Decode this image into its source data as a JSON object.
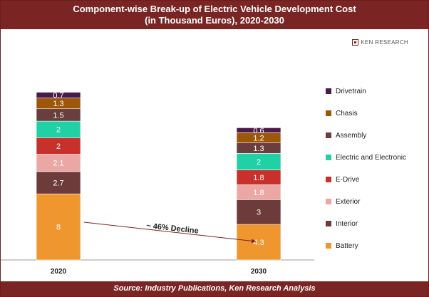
{
  "header": {
    "title_line1": "Component-wise Break-up of Electric Vehicle Development Cost",
    "title_line2": "(in Thousand Euros), 2020-2030"
  },
  "logo": {
    "text": "KEN RESEARCH"
  },
  "footer": {
    "source": "Source: Industry Publications, Ken Research Analysis"
  },
  "annotation": {
    "text": "~ 46% Decline"
  },
  "chart_data": {
    "type": "bar",
    "stacked": true,
    "title": "Component-wise Break-up of Electric Vehicle Development Cost (in Thousand Euros), 2020-2030",
    "categories": [
      "2020",
      "2030"
    ],
    "series": [
      {
        "name": "Battery",
        "values": [
          8,
          4.3
        ],
        "labels": [
          "8",
          "4.3"
        ],
        "color": "#f0962e"
      },
      {
        "name": "Interior",
        "values": [
          2.7,
          3
        ],
        "labels": [
          "2.7",
          "3"
        ],
        "color": "#6e3b3b"
      },
      {
        "name": "Exterior",
        "values": [
          2.1,
          1.8
        ],
        "labels": [
          "2.1",
          "1.8"
        ],
        "color": "#eba7a3"
      },
      {
        "name": "E-Drive",
        "values": [
          2,
          1.8
        ],
        "labels": [
          "2",
          "1.8"
        ],
        "color": "#c8302b"
      },
      {
        "name": "Electric and Electronic",
        "values": [
          2,
          2
        ],
        "labels": [
          "2",
          "2"
        ],
        "color": "#1fd1a5"
      },
      {
        "name": "Assembly",
        "values": [
          1.5,
          1.3
        ],
        "labels": [
          "1.5",
          "1.3"
        ],
        "color": "#6a3e3e"
      },
      {
        "name": "Chasis",
        "values": [
          1.3,
          1.2
        ],
        "labels": [
          "1.3",
          "1.2"
        ],
        "color": "#9c5708"
      },
      {
        "name": "Drivetrain",
        "values": [
          0.7,
          0.6
        ],
        "labels": [
          "0.7",
          "0.6"
        ],
        "color": "#4a1a4a"
      }
    ],
    "legend_order": [
      "Drivetrain",
      "Chasis",
      "Assembly",
      "Electric and Electronic",
      "E-Drive",
      "Exterior",
      "Interior",
      "Battery"
    ],
    "legend_position": "right",
    "ylim": [
      0,
      20.3
    ],
    "grid": false
  }
}
